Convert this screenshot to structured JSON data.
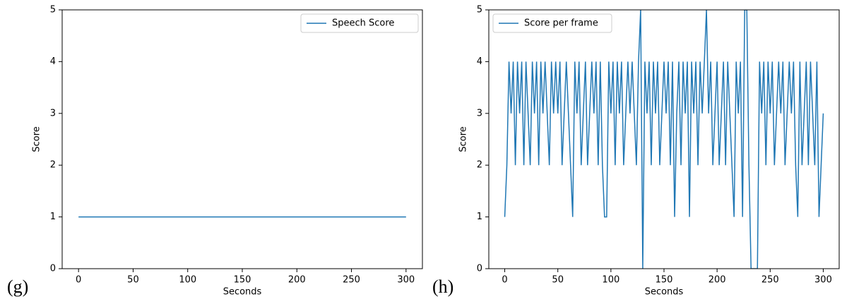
{
  "chart_data": [
    {
      "type": "line",
      "panel_label": "(g)",
      "xlabel": "Seconds",
      "ylabel": "Score",
      "x": [
        0,
        300
      ],
      "series": [
        {
          "name": "Speech Score",
          "color": "#1f77b4",
          "values": [
            1,
            1
          ]
        }
      ],
      "xlim": [
        -15,
        315
      ],
      "ylim": [
        0,
        5
      ],
      "xticks": [
        0,
        50,
        100,
        150,
        200,
        250,
        300
      ],
      "yticks": [
        0,
        1,
        2,
        3,
        4,
        5
      ],
      "legend": "upper right"
    },
    {
      "type": "line",
      "panel_label": "(h)",
      "xlabel": "Seconds",
      "ylabel": "Score",
      "x": [
        0,
        2,
        4,
        6,
        8,
        10,
        12,
        14,
        16,
        18,
        20,
        22,
        24,
        26,
        28,
        30,
        32,
        34,
        36,
        38,
        40,
        42,
        44,
        46,
        48,
        50,
        52,
        54,
        56,
        58,
        60,
        62,
        64,
        66,
        68,
        70,
        72,
        74,
        76,
        78,
        80,
        82,
        84,
        86,
        88,
        90,
        92,
        94,
        96,
        98,
        100,
        102,
        104,
        106,
        108,
        110,
        112,
        114,
        116,
        118,
        120,
        122,
        124,
        126,
        128,
        130,
        132,
        134,
        136,
        138,
        140,
        142,
        144,
        146,
        148,
        150,
        152,
        154,
        156,
        158,
        160,
        162,
        164,
        166,
        168,
        170,
        172,
        174,
        176,
        178,
        180,
        182,
        184,
        186,
        188,
        190,
        192,
        194,
        196,
        198,
        200,
        202,
        204,
        206,
        208,
        210,
        212,
        214,
        216,
        218,
        220,
        222,
        224,
        226,
        228,
        230,
        232,
        234,
        236,
        238,
        240,
        242,
        244,
        246,
        248,
        250,
        252,
        254,
        256,
        258,
        260,
        262,
        264,
        266,
        268,
        270,
        272,
        274,
        276,
        278,
        280,
        282,
        284,
        286,
        288,
        290,
        292,
        294,
        296,
        298,
        300
      ],
      "series": [
        {
          "name": "Score per frame",
          "color": "#1f77b4",
          "values": [
            1,
            2,
            4,
            3,
            4,
            2,
            4,
            3,
            4,
            2,
            4,
            3,
            2,
            4,
            3,
            4,
            2,
            4,
            3,
            4,
            3,
            2,
            4,
            3,
            4,
            3,
            4,
            2,
            3,
            4,
            3,
            2,
            1,
            4,
            3,
            4,
            2,
            3,
            4,
            2,
            3,
            4,
            3,
            4,
            2,
            4,
            2,
            1,
            1,
            4,
            3,
            4,
            2,
            4,
            3,
            4,
            2,
            3,
            4,
            3,
            4,
            3,
            2,
            4,
            5,
            0,
            4,
            3,
            4,
            2,
            4,
            3,
            4,
            2,
            3,
            4,
            3,
            4,
            2,
            4,
            1,
            3,
            4,
            2,
            4,
            3,
            4,
            1,
            4,
            3,
            4,
            2,
            4,
            3,
            4,
            5,
            3,
            4,
            2,
            3,
            4,
            2,
            3,
            4,
            2,
            4,
            3,
            2,
            1,
            4,
            3,
            4,
            1,
            5,
            5,
            2,
            0,
            0,
            0,
            0,
            4,
            3,
            4,
            2,
            4,
            3,
            4,
            2,
            3,
            4,
            3,
            4,
            2,
            3,
            4,
            3,
            4,
            2,
            1,
            4,
            2,
            3,
            4,
            2,
            4,
            3,
            2,
            4,
            1,
            2,
            3
          ]
        }
      ],
      "xlim": [
        -15,
        315
      ],
      "ylim": [
        0,
        5
      ],
      "xticks": [
        0,
        50,
        100,
        150,
        200,
        250,
        300
      ],
      "yticks": [
        0,
        1,
        2,
        3,
        4,
        5
      ],
      "legend": "upper left"
    }
  ]
}
